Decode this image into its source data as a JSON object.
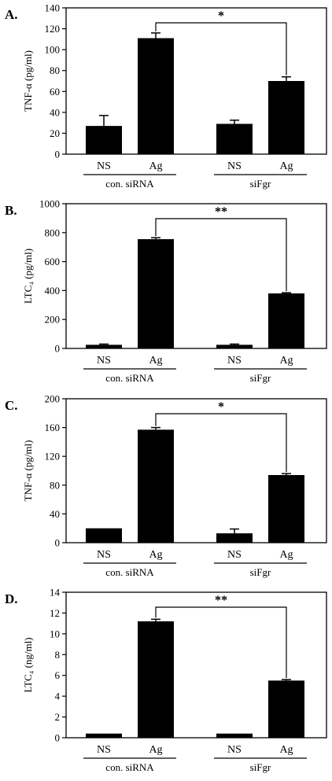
{
  "colors": {
    "bar": "#000000",
    "axis": "#000000",
    "background": "#ffffff"
  },
  "chart_data": [
    {
      "type": "bar",
      "panel_label": "A.",
      "ylabel": "TNF-α (pg/ml)",
      "ylim": [
        0,
        140
      ],
      "yticks": [
        "0",
        "20",
        "40",
        "60",
        "80",
        "100",
        "120",
        "140"
      ],
      "categories": [
        "NS",
        "Ag",
        "NS",
        "Ag"
      ],
      "groups": [
        "con. siRNA",
        "siFgr"
      ],
      "values": [
        27,
        111,
        29,
        70
      ],
      "errors": [
        10,
        5,
        3.5,
        4
      ],
      "significance": "*"
    },
    {
      "type": "bar",
      "panel_label": "B.",
      "ylabel": "LTC₄ (pg/ml)",
      "ylim": [
        0,
        1000
      ],
      "yticks": [
        "0",
        "200",
        "400",
        "600",
        "800",
        "1000"
      ],
      "categories": [
        "NS",
        "Ag",
        "NS",
        "Ag"
      ],
      "groups": [
        "con. siRNA",
        "siFgr"
      ],
      "values": [
        25,
        755,
        25,
        380
      ],
      "errors": [
        5,
        10,
        5,
        5
      ],
      "significance": "**"
    },
    {
      "type": "bar",
      "panel_label": "C.",
      "ylabel": "TNF-α (pg/ml)",
      "ylim": [
        0,
        200
      ],
      "yticks": [
        "0",
        "40",
        "80",
        "120",
        "160",
        "200"
      ],
      "categories": [
        "NS",
        "Ag",
        "NS",
        "Ag"
      ],
      "groups": [
        "con. siRNA",
        "siFgr"
      ],
      "values": [
        20,
        157,
        13,
        94
      ],
      "errors": [
        0,
        3,
        6,
        2
      ],
      "significance": "*"
    },
    {
      "type": "bar",
      "panel_label": "D.",
      "ylabel": "LTC₄ (ng/ml)",
      "ylim": [
        0,
        14
      ],
      "yticks": [
        "0",
        "2",
        "4",
        "6",
        "8",
        "10",
        "12",
        "14"
      ],
      "categories": [
        "NS",
        "Ag",
        "NS",
        "Ag"
      ],
      "groups": [
        "con. siRNA",
        "siFgr"
      ],
      "values": [
        0.4,
        11.2,
        0.4,
        5.5
      ],
      "errors": [
        0,
        0.2,
        0,
        0.1
      ],
      "significance": "**"
    }
  ]
}
